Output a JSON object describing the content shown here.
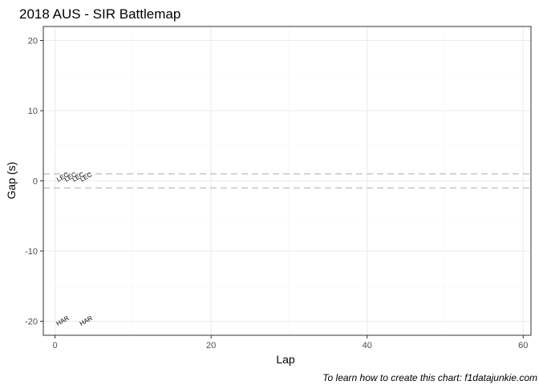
{
  "chart_data": {
    "type": "scatter",
    "title": "2018 AUS - SIR Battlemap",
    "xlabel": "Lap",
    "ylabel": "Gap (s)",
    "caption": "To learn how to create this chart: f1datajunkie.com",
    "xlim": [
      -1.5,
      61
    ],
    "ylim": [
      -22,
      22
    ],
    "x_ticks": [
      0,
      20,
      40,
      60
    ],
    "y_ticks": [
      -20,
      -10,
      0,
      10,
      20
    ],
    "grid": true,
    "reference_lines": [
      1,
      -1
    ],
    "points": [
      {
        "x": 1,
        "y": 0.5,
        "label": "LEC"
      },
      {
        "x": 2,
        "y": 0.5,
        "label": "LEC"
      },
      {
        "x": 3,
        "y": 0.5,
        "label": "LEC"
      },
      {
        "x": 4,
        "y": 0.5,
        "label": "LEC"
      },
      {
        "x": 1,
        "y": -20,
        "label": "HAR"
      },
      {
        "x": 4,
        "y": -20,
        "label": "HAR"
      }
    ],
    "colors": {
      "panel_border": "#333333",
      "grid_major": "#ebebeb",
      "grid_minor": "#f5f5f5",
      "reference_line": "#bdbdbd"
    }
  }
}
